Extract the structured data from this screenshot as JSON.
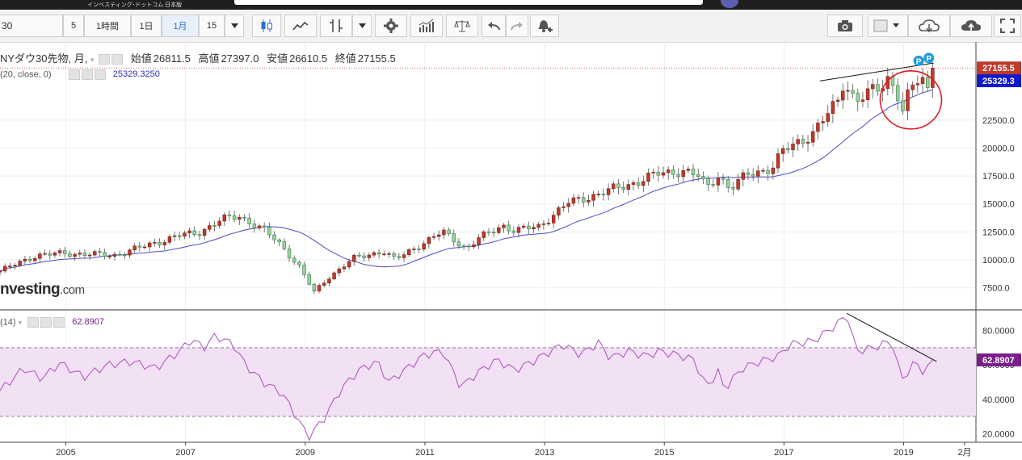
{
  "header": {
    "brand": "インベスティング･ドットコム 日本版"
  },
  "toolbar": {
    "symbol": "30",
    "intervals": [
      "5",
      "1時間",
      "1日",
      "1月",
      "15"
    ],
    "active_interval": "1月",
    "icons": [
      "candlestick-icon",
      "line-chart-icon",
      "indicator-icon",
      "settings-gear-icon",
      "bar-compare-icon",
      "balance-scale-icon",
      "undo-icon",
      "redo-icon",
      "alert-icon",
      "camera-icon",
      "color-swatch-icon",
      "cloud-download-icon",
      "cloud-upload-icon",
      "fullscreen-icon"
    ]
  },
  "legend": {
    "title": "NYダウ30先物, 月,",
    "open_label": "始値",
    "open": "26811.5",
    "high_label": "高値",
    "high": "27397.0",
    "low_label": "安値",
    "low": "26610.5",
    "close_label": "終値",
    "close": "27155.5",
    "sma_label": "(20, close, 0)",
    "sma_value": "25329.3250",
    "rsi_label": "(14)",
    "rsi_value": "62.8907"
  },
  "watermark": {
    "main": "nvesting",
    "suffix": ".com"
  },
  "colors": {
    "up": "#1a8a3a",
    "up_fill": "#9ed0a4",
    "down": "#c0392b",
    "down_fill": "#c0392b",
    "sma": "#4b4bc9",
    "rsi": "#b05cc0",
    "rsi_band": "#f2e0f4",
    "price_tag": "#c0392b",
    "sma_tag": "#0f19c8",
    "rsi_tag": "#7a1f8a",
    "annotation": "#e0191f"
  },
  "chart_data": [
    {
      "type": "candlestick",
      "title": "NYダウ30先物, 月,",
      "ylim": [
        5600,
        28400
      ],
      "y_ticks": [
        7500,
        10000,
        12500,
        15000,
        17500,
        20000,
        22500
      ],
      "x_ticks": [
        "2005",
        "2007",
        "2009",
        "2011",
        "2013",
        "2015",
        "2017",
        "2019",
        "2月"
      ],
      "last_price": 27155.5,
      "last_price_label": "27155.5",
      "sma_last_label": "25329.3",
      "markers": [
        "P",
        "P"
      ],
      "keypoints": [
        [
          2003.9,
          9000
        ],
        [
          2004.5,
          10400
        ],
        [
          2005.0,
          10600
        ],
        [
          2005.8,
          10400
        ],
        [
          2006.3,
          11200
        ],
        [
          2006.9,
          12200
        ],
        [
          2007.2,
          12400
        ],
        [
          2007.6,
          13600
        ],
        [
          2007.9,
          13900
        ],
        [
          2008.3,
          12700
        ],
        [
          2008.6,
          11300
        ],
        [
          2008.9,
          9400
        ],
        [
          2009.15,
          7100
        ],
        [
          2009.4,
          8500
        ],
        [
          2009.8,
          10100
        ],
        [
          2010.3,
          10800
        ],
        [
          2010.5,
          10000
        ],
        [
          2010.9,
          11300
        ],
        [
          2011.3,
          12500
        ],
        [
          2011.7,
          11000
        ],
        [
          2011.9,
          11900
        ],
        [
          2012.3,
          13100
        ],
        [
          2012.5,
          12600
        ],
        [
          2012.9,
          13000
        ],
        [
          2013.4,
          15100
        ],
        [
          2013.9,
          15900
        ],
        [
          2014.5,
          16900
        ],
        [
          2014.9,
          17700
        ],
        [
          2015.3,
          18000
        ],
        [
          2015.6,
          17400
        ],
        [
          2015.7,
          16400
        ],
        [
          2015.9,
          17600
        ],
        [
          2016.1,
          16300
        ],
        [
          2016.4,
          17700
        ],
        [
          2016.8,
          18200
        ],
        [
          2017.0,
          19800
        ],
        [
          2017.5,
          21400
        ],
        [
          2017.9,
          24200
        ],
        [
          2018.0,
          26100
        ],
        [
          2018.2,
          24200
        ],
        [
          2018.6,
          25400
        ],
        [
          2018.75,
          26400
        ],
        [
          2018.9,
          24800
        ],
        [
          2018.98,
          23300
        ],
        [
          2019.1,
          25000
        ],
        [
          2019.3,
          26500
        ],
        [
          2019.38,
          24800
        ],
        [
          2019.5,
          27155
        ]
      ]
    },
    {
      "type": "line",
      "series_label": "(14)",
      "ylim": [
        15,
        92
      ],
      "y_ticks": [
        20,
        40,
        60,
        80
      ],
      "bands": [
        30,
        70
      ],
      "last_value": 62.8907,
      "keypoints": [
        [
          2003.9,
          45
        ],
        [
          2004.3,
          58
        ],
        [
          2004.6,
          52
        ],
        [
          2004.9,
          61
        ],
        [
          2005.3,
          53
        ],
        [
          2005.7,
          60
        ],
        [
          2006.1,
          62
        ],
        [
          2006.5,
          58
        ],
        [
          2006.9,
          68
        ],
        [
          2007.1,
          75
        ],
        [
          2007.3,
          70
        ],
        [
          2007.5,
          77
        ],
        [
          2007.8,
          72
        ],
        [
          2008.0,
          60
        ],
        [
          2008.3,
          50
        ],
        [
          2008.6,
          44
        ],
        [
          2008.8,
          33
        ],
        [
          2009.05,
          18
        ],
        [
          2009.3,
          28
        ],
        [
          2009.6,
          46
        ],
        [
          2009.9,
          57
        ],
        [
          2010.2,
          62
        ],
        [
          2010.4,
          50
        ],
        [
          2010.7,
          58
        ],
        [
          2011.0,
          66
        ],
        [
          2011.3,
          68
        ],
        [
          2011.6,
          47
        ],
        [
          2011.9,
          56
        ],
        [
          2012.2,
          63
        ],
        [
          2012.5,
          57
        ],
        [
          2012.8,
          62
        ],
        [
          2013.0,
          66
        ],
        [
          2013.3,
          72
        ],
        [
          2013.6,
          66
        ],
        [
          2013.9,
          73
        ],
        [
          2014.1,
          64
        ],
        [
          2014.4,
          68
        ],
        [
          2014.7,
          65
        ],
        [
          2014.9,
          68
        ],
        [
          2015.2,
          66
        ],
        [
          2015.5,
          63
        ],
        [
          2015.7,
          47
        ],
        [
          2015.9,
          56
        ],
        [
          2016.0,
          46
        ],
        [
          2016.3,
          58
        ],
        [
          2016.6,
          62
        ],
        [
          2016.9,
          65
        ],
        [
          2017.1,
          72
        ],
        [
          2017.5,
          74
        ],
        [
          2017.9,
          84
        ],
        [
          2018.05,
          90
        ],
        [
          2018.2,
          68
        ],
        [
          2018.5,
          70
        ],
        [
          2018.8,
          74
        ],
        [
          2018.9,
          60
        ],
        [
          2018.98,
          52
        ],
        [
          2019.2,
          62
        ],
        [
          2019.35,
          55
        ],
        [
          2019.5,
          62.8907
        ]
      ]
    }
  ]
}
